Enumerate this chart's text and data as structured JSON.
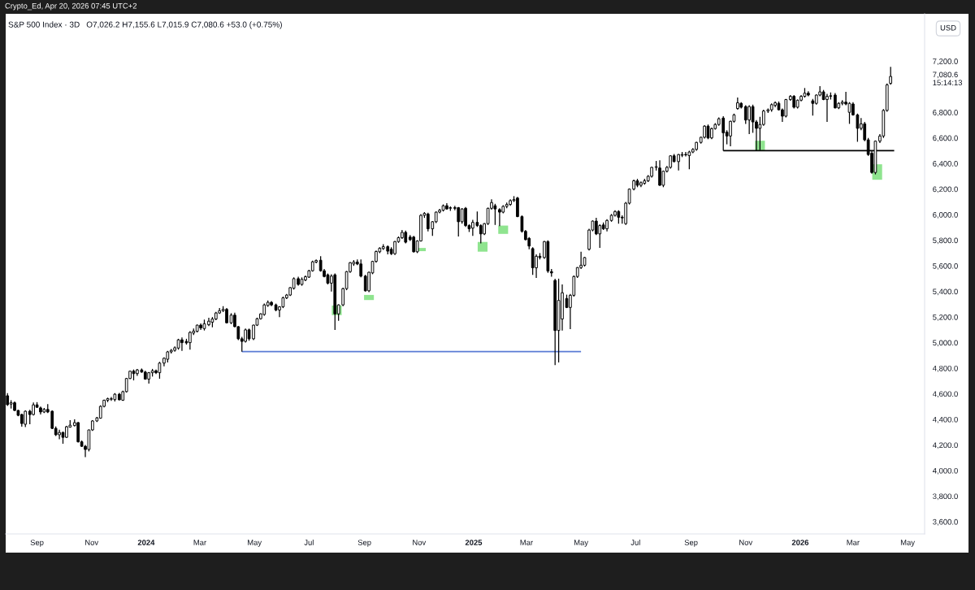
{
  "chart_data": {
    "type": "candlestick",
    "title": "S&P 500 Index · 3D",
    "subtitle": "O7,026.2 H7,155.6 L7,015.9 C7,080.6 +53.0 (+0.75%)",
    "ylabel": "USD",
    "annotations": [
      "Crypto_Ed, Apr 20, 2026 07:45 UTC+2",
      "7,080.6\n15:14:13"
    ],
    "xlim": [
      "2023-07-28",
      "2026-05-20"
    ],
    "ylim": [
      3505,
      7570
    ],
    "xticks": [
      {
        "value": "2023-09-01",
        "label": "Sep"
      },
      {
        "value": "2023-11-01",
        "label": "Nov"
      },
      {
        "value": "2024-01-01",
        "label": "2024"
      },
      {
        "value": "2024-03-01",
        "label": "Mar"
      },
      {
        "value": "2024-05-01",
        "label": "May"
      },
      {
        "value": "2024-07-01",
        "label": "Jul"
      },
      {
        "value": "2024-09-01",
        "label": "Sep"
      },
      {
        "value": "2024-11-01",
        "label": "Nov"
      },
      {
        "value": "2025-01-01",
        "label": "2025"
      },
      {
        "value": "2025-03-01",
        "label": "Mar"
      },
      {
        "value": "2025-05-01",
        "label": "May"
      },
      {
        "value": "2025-07-01",
        "label": "Jul"
      },
      {
        "value": "2025-09-01",
        "label": "Sep"
      },
      {
        "value": "2025-11-01",
        "label": "Nov"
      },
      {
        "value": "2026-01-01",
        "label": "2026"
      },
      {
        "value": "2026-03-01",
        "label": "Mar"
      },
      {
        "value": "2026-05-01",
        "label": "May"
      }
    ],
    "yticks": [
      {
        "value": 3600,
        "label": "3,600.0"
      },
      {
        "value": 3800,
        "label": "3,800.0"
      },
      {
        "value": 4000,
        "label": "4,000.0"
      },
      {
        "value": 4200,
        "label": "4,200.0"
      },
      {
        "value": 4400,
        "label": "4,400.0"
      },
      {
        "value": 4600,
        "label": "4,600.0"
      },
      {
        "value": 4800,
        "label": "4,800.0"
      },
      {
        "value": 5000,
        "label": "5,000.0"
      },
      {
        "value": 5200,
        "label": "5,200.0"
      },
      {
        "value": 5400,
        "label": "5,400.0"
      },
      {
        "value": 5600,
        "label": "5,600.0"
      },
      {
        "value": 5800,
        "label": "5,800.0"
      },
      {
        "value": 6000,
        "label": "6,000.0"
      },
      {
        "value": 6200,
        "label": "6,200.0"
      },
      {
        "value": 6400,
        "label": "6,400.0"
      },
      {
        "value": 6600,
        "label": "6,600.0"
      },
      {
        "value": 6800,
        "label": "6,800.0"
      },
      {
        "value": 7200,
        "label": "7,200.0"
      }
    ],
    "series": [
      {
        "type": "bar",
        "color": "#8fe48f",
        "x": [
          "2024-08-01",
          "2024-09-06",
          "2024-11-03",
          "2025-01-11",
          "2025-02-03",
          "2025-11-17",
          "2026-03-28"
        ],
        "base": [
          5215,
          5333,
          5715,
          5711,
          5850,
          6500,
          6273
        ],
        "values": [
          75,
          40,
          25,
          76,
          65,
          78,
          121
        ]
      },
      {
        "type": "line",
        "color": "#5b7bd5",
        "x": [
          "2024-04-17",
          "2025-05-01"
        ],
        "values": [
          4930,
          4930
        ]
      },
      {
        "type": "line",
        "color": "#000000",
        "x": [
          "2025-10-07",
          "2026-04-16"
        ],
        "values": [
          6500,
          6500
        ]
      },
      {
        "color": "#000000",
        "x": [
          "2023-07-30",
          "2023-08-03",
          "2023-08-07",
          "2023-08-11",
          "2023-08-15",
          "2023-08-19",
          "2023-08-24",
          "2023-08-28",
          "2023-09-01",
          "2023-09-05",
          "2023-09-09",
          "2023-09-13",
          "2023-09-18",
          "2023-09-22",
          "2023-09-26",
          "2023-09-30",
          "2023-10-04",
          "2023-10-08",
          "2023-10-13",
          "2023-10-17",
          "2023-10-21",
          "2023-10-25",
          "2023-10-29",
          "2023-11-02",
          "2023-11-07",
          "2023-11-11",
          "2023-11-15",
          "2023-11-19",
          "2023-11-23",
          "2023-11-27",
          "2023-12-02",
          "2023-12-06",
          "2023-12-10",
          "2023-12-14",
          "2023-12-18",
          "2023-12-22",
          "2023-12-27",
          "2023-12-31",
          "2024-01-04",
          "2024-01-08",
          "2024-01-12",
          "2024-01-16",
          "2024-01-21",
          "2024-01-25",
          "2024-01-29",
          "2024-02-02",
          "2024-02-06",
          "2024-02-10",
          "2024-02-15",
          "2024-02-19",
          "2024-02-23",
          "2024-02-27",
          "2024-03-02",
          "2024-03-06",
          "2024-03-11",
          "2024-03-15",
          "2024-03-19",
          "2024-03-23",
          "2024-03-27",
          "2024-03-31",
          "2024-04-05",
          "2024-04-09",
          "2024-04-13",
          "2024-04-17",
          "2024-04-21",
          "2024-04-25",
          "2024-04-30",
          "2024-05-04",
          "2024-05-08",
          "2024-05-12",
          "2024-05-16",
          "2024-05-20",
          "2024-05-25",
          "2024-05-29",
          "2024-06-02",
          "2024-06-06",
          "2024-06-10",
          "2024-06-14",
          "2024-06-19",
          "2024-06-23",
          "2024-06-27",
          "2024-07-01",
          "2024-07-05",
          "2024-07-09",
          "2024-07-14",
          "2024-07-18",
          "2024-07-22",
          "2024-07-26",
          "2024-07-30",
          "2024-08-03",
          "2024-08-08",
          "2024-08-12",
          "2024-08-16",
          "2024-08-20",
          "2024-08-24",
          "2024-08-28",
          "2024-09-02",
          "2024-09-06",
          "2024-09-10",
          "2024-09-14",
          "2024-09-18",
          "2024-09-22",
          "2024-09-27",
          "2024-10-01",
          "2024-10-05",
          "2024-10-09",
          "2024-10-13",
          "2024-10-17",
          "2024-10-22",
          "2024-10-26",
          "2024-10-30",
          "2024-11-03",
          "2024-11-07",
          "2024-11-11",
          "2024-11-16",
          "2024-11-20",
          "2024-11-24",
          "2024-11-28",
          "2024-12-02",
          "2024-12-06",
          "2024-12-11",
          "2024-12-15",
          "2024-12-19",
          "2024-12-23",
          "2024-12-27",
          "2024-12-31",
          "2025-01-05",
          "2025-01-09",
          "2025-01-13",
          "2025-01-17",
          "2025-01-21",
          "2025-01-25",
          "2025-01-30",
          "2025-02-03",
          "2025-02-07",
          "2025-02-11",
          "2025-02-15",
          "2025-02-19",
          "2025-02-24",
          "2025-02-28",
          "2025-03-04",
          "2025-03-08",
          "2025-03-12",
          "2025-03-16",
          "2025-03-21",
          "2025-03-25",
          "2025-03-29",
          "2025-04-02",
          "2025-04-06",
          "2025-04-10",
          "2025-04-15",
          "2025-04-19",
          "2025-04-23",
          "2025-04-27",
          "2025-05-01",
          "2025-05-05",
          "2025-05-10",
          "2025-05-14",
          "2025-05-18",
          "2025-05-22",
          "2025-05-26",
          "2025-05-30",
          "2025-06-04",
          "2025-06-08",
          "2025-06-12",
          "2025-06-16",
          "2025-06-20",
          "2025-06-24",
          "2025-06-29",
          "2025-07-03",
          "2025-07-07",
          "2025-07-11",
          "2025-07-15",
          "2025-07-19",
          "2025-07-24",
          "2025-07-28",
          "2025-08-01",
          "2025-08-05",
          "2025-08-09",
          "2025-08-13",
          "2025-08-18",
          "2025-08-22",
          "2025-08-26",
          "2025-08-30",
          "2025-09-03",
          "2025-09-07",
          "2025-09-12",
          "2025-09-16",
          "2025-09-20",
          "2025-09-24",
          "2025-09-28",
          "2025-10-02",
          "2025-10-07",
          "2025-10-11",
          "2025-10-15",
          "2025-10-19",
          "2025-10-23",
          "2025-10-27",
          "2025-11-01",
          "2025-11-05",
          "2025-11-09",
          "2025-11-13",
          "2025-11-17",
          "2025-11-21",
          "2025-11-26",
          "2025-11-30",
          "2025-12-04",
          "2025-12-08",
          "2025-12-12",
          "2025-12-16",
          "2025-12-21",
          "2025-12-25",
          "2025-12-29",
          "2026-01-02",
          "2026-01-06",
          "2026-01-10",
          "2026-01-15",
          "2026-01-19",
          "2026-01-23",
          "2026-01-27",
          "2026-01-31",
          "2026-02-04",
          "2026-02-09",
          "2026-02-13",
          "2026-02-17",
          "2026-02-21",
          "2026-02-25",
          "2026-03-01",
          "2026-03-06",
          "2026-03-10",
          "2026-03-14",
          "2026-03-18",
          "2026-03-22",
          "2026-03-26",
          "2026-03-31",
          "2026-04-04",
          "2026-04-08",
          "2026-04-12"
        ],
        "ohlc": [
          [
            4585,
            4605,
            4505,
            4515
          ],
          [
            4520,
            4550,
            4485,
            4530
          ],
          [
            4530,
            4540,
            4465,
            4470
          ],
          [
            4470,
            4475,
            4425,
            4432
          ],
          [
            4438,
            4445,
            4343,
            4368
          ],
          [
            4362,
            4470,
            4340,
            4464
          ],
          [
            4464,
            4475,
            4362,
            4438
          ],
          [
            4438,
            4533,
            4430,
            4514
          ],
          [
            4514,
            4535,
            4490,
            4495
          ],
          [
            4490,
            4500,
            4438,
            4458
          ],
          [
            4458,
            4490,
            4450,
            4478
          ],
          [
            4478,
            4520,
            4450,
            4458
          ],
          [
            4464,
            4470,
            4325,
            4330
          ],
          [
            4330,
            4345,
            4270,
            4280
          ],
          [
            4280,
            4320,
            4245,
            4298
          ],
          [
            4298,
            4305,
            4210,
            4260
          ],
          [
            4260,
            4350,
            4255,
            4343
          ],
          [
            4340,
            4395,
            4335,
            4355
          ],
          [
            4352,
            4400,
            4345,
            4375
          ],
          [
            4375,
            4380,
            4220,
            4225
          ],
          [
            4225,
            4235,
            4185,
            4190
          ],
          [
            4190,
            4200,
            4105,
            4165
          ],
          [
            4165,
            4320,
            4150,
            4318
          ],
          [
            4318,
            4395,
            4310,
            4388
          ],
          [
            4388,
            4420,
            4380,
            4412
          ],
          [
            4410,
            4510,
            4405,
            4502
          ],
          [
            4502,
            4555,
            4495,
            4550
          ],
          [
            4550,
            4570,
            4535,
            4562
          ],
          [
            4558,
            4575,
            4545,
            4560
          ],
          [
            4555,
            4605,
            4540,
            4597
          ],
          [
            4597,
            4607,
            4550,
            4553
          ],
          [
            4550,
            4625,
            4545,
            4617
          ],
          [
            4617,
            4725,
            4610,
            4720
          ],
          [
            4720,
            4780,
            4715,
            4777
          ],
          [
            4777,
            4790,
            4705,
            4758
          ],
          [
            4758,
            4795,
            4740,
            4787
          ],
          [
            4787,
            4798,
            4765,
            4770
          ],
          [
            4770,
            4780,
            4710,
            4715
          ],
          [
            4715,
            4770,
            4680,
            4765
          ],
          [
            4765,
            4795,
            4735,
            4780
          ],
          [
            4780,
            4790,
            4755,
            4765
          ],
          [
            4765,
            4850,
            4718,
            4840
          ],
          [
            4840,
            4885,
            4815,
            4878
          ],
          [
            4870,
            4935,
            4845,
            4928
          ],
          [
            4928,
            4950,
            4915,
            4940
          ],
          [
            4940,
            4970,
            4930,
            4960
          ],
          [
            4958,
            5030,
            4945,
            5022
          ],
          [
            5022,
            5040,
            4935,
            5000
          ],
          [
            5010,
            5030,
            4985,
            4998
          ],
          [
            5000,
            5090,
            4946,
            5080
          ],
          [
            5075,
            5110,
            5060,
            5090
          ],
          [
            5088,
            5140,
            5080,
            5137
          ],
          [
            5137,
            5150,
            5100,
            5115
          ],
          [
            5110,
            5180,
            5095,
            5148
          ],
          [
            5140,
            5195,
            5130,
            5168
          ],
          [
            5160,
            5200,
            5120,
            5185
          ],
          [
            5185,
            5240,
            5175,
            5232
          ],
          [
            5232,
            5270,
            5225,
            5250
          ],
          [
            5250,
            5285,
            5240,
            5260
          ],
          [
            5260,
            5270,
            5150,
            5155
          ],
          [
            5155,
            5230,
            5145,
            5215
          ],
          [
            5215,
            5235,
            5120,
            5125
          ],
          [
            5125,
            5130,
            5020,
            5030
          ],
          [
            5030,
            5045,
            4930,
            5010
          ],
          [
            5010,
            5110,
            5000,
            5100
          ],
          [
            5100,
            5110,
            5015,
            5030
          ],
          [
            5030,
            5140,
            5020,
            5137
          ],
          [
            5137,
            5195,
            5130,
            5187
          ],
          [
            5187,
            5230,
            5180,
            5225
          ],
          [
            5220,
            5305,
            5210,
            5295
          ],
          [
            5290,
            5330,
            5280,
            5315
          ],
          [
            5315,
            5325,
            5285,
            5295
          ],
          [
            5295,
            5305,
            5245,
            5255
          ],
          [
            5255,
            5285,
            5200,
            5280
          ],
          [
            5280,
            5360,
            5270,
            5350
          ],
          [
            5350,
            5380,
            5340,
            5372
          ],
          [
            5372,
            5435,
            5365,
            5430
          ],
          [
            5425,
            5510,
            5415,
            5500
          ],
          [
            5500,
            5515,
            5445,
            5455
          ],
          [
            5455,
            5510,
            5445,
            5495
          ],
          [
            5490,
            5525,
            5480,
            5515
          ],
          [
            5512,
            5570,
            5505,
            5562
          ],
          [
            5562,
            5640,
            5555,
            5632
          ],
          [
            5630,
            5650,
            5620,
            5642
          ],
          [
            5644,
            5676,
            5555,
            5562
          ],
          [
            5562,
            5575,
            5510,
            5517
          ],
          [
            5530,
            5540,
            5455,
            5465
          ],
          [
            5465,
            5535,
            5400,
            5520
          ],
          [
            5530,
            5540,
            5100,
            5225
          ],
          [
            5225,
            5300,
            5170,
            5295
          ],
          [
            5295,
            5430,
            5285,
            5422
          ],
          [
            5422,
            5560,
            5410,
            5555
          ],
          [
            5555,
            5630,
            5545,
            5625
          ],
          [
            5615,
            5645,
            5600,
            5630
          ],
          [
            5630,
            5650,
            5605,
            5615
          ],
          [
            5615,
            5650,
            5510,
            5520
          ],
          [
            5520,
            5530,
            5400,
            5405
          ],
          [
            5405,
            5555,
            5395,
            5550
          ],
          [
            5545,
            5640,
            5535,
            5635
          ],
          [
            5635,
            5720,
            5625,
            5712
          ],
          [
            5710,
            5745,
            5700,
            5738
          ],
          [
            5735,
            5770,
            5725,
            5750
          ],
          [
            5750,
            5760,
            5690,
            5715
          ],
          [
            5730,
            5745,
            5685,
            5695
          ],
          [
            5695,
            5795,
            5685,
            5790
          ],
          [
            5790,
            5830,
            5780,
            5820
          ],
          [
            5820,
            5880,
            5810,
            5862
          ],
          [
            5862,
            5875,
            5775,
            5785
          ],
          [
            5825,
            5840,
            5795,
            5805
          ],
          [
            5825,
            5835,
            5705,
            5710
          ],
          [
            5710,
            5800,
            5700,
            5795
          ],
          [
            5795,
            6005,
            5790,
            5995
          ],
          [
            5995,
            6020,
            5975,
            6010
          ],
          [
            6005,
            6015,
            5870,
            5890
          ],
          [
            5890,
            5950,
            5835,
            5945
          ],
          [
            5945,
            6025,
            5935,
            6020
          ],
          [
            6020,
            6045,
            6010,
            6035
          ],
          [
            6035,
            6080,
            6025,
            6070
          ],
          [
            6070,
            6090,
            6040,
            6045
          ],
          [
            6050,
            6065,
            6030,
            6055
          ],
          [
            6055,
            6070,
            6035,
            6050
          ],
          [
            6055,
            6060,
            5830,
            5945
          ],
          [
            5945,
            6050,
            5930,
            6045
          ],
          [
            6050,
            6060,
            5905,
            5915
          ],
          [
            5915,
            5925,
            5865,
            5890
          ],
          [
            5895,
            5960,
            5835,
            5940
          ],
          [
            5940,
            6025,
            5905,
            5915
          ],
          [
            5915,
            5925,
            5775,
            5850
          ],
          [
            5850,
            5935,
            5840,
            5930
          ],
          [
            5930,
            6055,
            5920,
            6050
          ],
          [
            6050,
            6120,
            6040,
            6095
          ],
          [
            6070,
            6085,
            5920,
            6045
          ],
          [
            6040,
            6050,
            5910,
            6020
          ],
          [
            6020,
            6075,
            6010,
            6065
          ],
          [
            6065,
            6095,
            6050,
            6080
          ],
          [
            6080,
            6120,
            6070,
            6110
          ],
          [
            6110,
            6145,
            6100,
            6118
          ],
          [
            6130,
            6140,
            5980,
            5985
          ],
          [
            5985,
            5995,
            5860,
            5870
          ],
          [
            5870,
            5880,
            5800,
            5805
          ],
          [
            5815,
            5825,
            5730,
            5755
          ],
          [
            5735,
            5745,
            5530,
            5585
          ],
          [
            5585,
            5690,
            5505,
            5675
          ],
          [
            5675,
            5700,
            5650,
            5665
          ],
          [
            5665,
            5795,
            5655,
            5790
          ],
          [
            5790,
            5800,
            5545,
            5560
          ],
          [
            5555,
            5575,
            5515,
            5545
          ],
          [
            5486,
            5500,
            4825,
            5095
          ],
          [
            5095,
            5500,
            4845,
            5330
          ],
          [
            5185,
            5455,
            5095,
            5390
          ],
          [
            5345,
            5375,
            5270,
            5275
          ],
          [
            5275,
            5380,
            5105,
            5370
          ],
          [
            5370,
            5525,
            5360,
            5517
          ],
          [
            5517,
            5590,
            5505,
            5587
          ],
          [
            5587,
            5710,
            5575,
            5605
          ],
          [
            5605,
            5670,
            5595,
            5665
          ],
          [
            5730,
            5890,
            5720,
            5880
          ],
          [
            5880,
            5955,
            5870,
            5950
          ],
          [
            5950,
            5975,
            5840,
            5850
          ],
          [
            5850,
            5925,
            5740,
            5915
          ],
          [
            5920,
            5940,
            5880,
            5890
          ],
          [
            5890,
            5965,
            5870,
            5955
          ],
          [
            5955,
            6005,
            5945,
            5995
          ],
          [
            5995,
            6035,
            5985,
            6025
          ],
          [
            6025,
            6035,
            5930,
            5980
          ],
          [
            5980,
            5995,
            5930,
            5975
          ],
          [
            5930,
            6100,
            5920,
            6090
          ],
          [
            6090,
            6205,
            6080,
            6200
          ],
          [
            6200,
            6275,
            6190,
            6265
          ],
          [
            6265,
            6280,
            6215,
            6230
          ],
          [
            6230,
            6260,
            6215,
            6250
          ],
          [
            6245,
            6280,
            6235,
            6265
          ],
          [
            6265,
            6310,
            6255,
            6300
          ],
          [
            6300,
            6375,
            6290,
            6370
          ],
          [
            6370,
            6420,
            6345,
            6375
          ],
          [
            6365,
            6425,
            6225,
            6230
          ],
          [
            6230,
            6345,
            6215,
            6340
          ],
          [
            6340,
            6380,
            6330,
            6370
          ],
          [
            6370,
            6465,
            6360,
            6460
          ],
          [
            6460,
            6475,
            6410,
            6415
          ],
          [
            6415,
            6475,
            6345,
            6470
          ],
          [
            6465,
            6490,
            6450,
            6470
          ],
          [
            6470,
            6490,
            6455,
            6468
          ],
          [
            6462,
            6500,
            6355,
            6490
          ],
          [
            6490,
            6520,
            6480,
            6510
          ],
          [
            6510,
            6570,
            6500,
            6565
          ],
          [
            6565,
            6610,
            6555,
            6605
          ],
          [
            6605,
            6700,
            6595,
            6692
          ],
          [
            6692,
            6705,
            6590,
            6600
          ],
          [
            6600,
            6680,
            6590,
            6673
          ],
          [
            6673,
            6715,
            6665,
            6705
          ],
          [
            6705,
            6760,
            6695,
            6750
          ],
          [
            6755,
            6770,
            6500,
            6640
          ],
          [
            6645,
            6660,
            6550,
            6615
          ],
          [
            6615,
            6735,
            6535,
            6730
          ],
          [
            6730,
            6790,
            6720,
            6780
          ],
          [
            6830,
            6915,
            6820,
            6875
          ],
          [
            6870,
            6880,
            6830,
            6840
          ],
          [
            6845,
            6855,
            6710,
            6740
          ],
          [
            6740,
            6855,
            6630,
            6845
          ],
          [
            6845,
            6860,
            6640,
            6725
          ],
          [
            6725,
            6740,
            6500,
            6675
          ],
          [
            6675,
            6765,
            6505,
            6705
          ],
          [
            6705,
            6820,
            6695,
            6810
          ],
          [
            6810,
            6830,
            6795,
            6820
          ],
          [
            6820,
            6870,
            6805,
            6860
          ],
          [
            6855,
            6885,
            6840,
            6875
          ],
          [
            6870,
            6885,
            6815,
            6820
          ],
          [
            6820,
            6830,
            6725,
            6770
          ],
          [
            6770,
            6905,
            6760,
            6900
          ],
          [
            6900,
            6935,
            6890,
            6925
          ],
          [
            6925,
            6935,
            6830,
            6840
          ],
          [
            6840,
            6900,
            6830,
            6895
          ],
          [
            6895,
            6935,
            6885,
            6925
          ],
          [
            6925,
            6990,
            6915,
            6950
          ],
          [
            6950,
            6965,
            6925,
            6935
          ],
          [
            6890,
            6905,
            6775,
            6870
          ],
          [
            6870,
            6940,
            6860,
            6935
          ],
          [
            6935,
            7005,
            6925,
            6960
          ],
          [
            6960,
            6975,
            6895,
            6900
          ],
          [
            6900,
            6945,
            6725,
            6925
          ],
          [
            6925,
            6955,
            6900,
            6930
          ],
          [
            6935,
            6950,
            6830,
            6835
          ],
          [
            6835,
            6880,
            6825,
            6870
          ],
          [
            6870,
            6895,
            6855,
            6880
          ],
          [
            6880,
            6960,
            6855,
            6865
          ],
          [
            6800,
            6880,
            6710,
            6870
          ],
          [
            6865,
            6880,
            6775,
            6780
          ],
          [
            6780,
            6790,
            6570,
            6675
          ],
          [
            6675,
            6755,
            6660,
            6710
          ],
          [
            6710,
            6725,
            6575,
            6585
          ],
          [
            6585,
            6600,
            6460,
            6470
          ],
          [
            6480,
            6500,
            6320,
            6330
          ],
          [
            6330,
            6580,
            6315,
            6575
          ],
          [
            6575,
            6630,
            6560,
            6615
          ],
          [
            6615,
            6825,
            6600,
            6815
          ],
          [
            6815,
            7025,
            6805,
            7015
          ],
          [
            7026.2,
            7155.6,
            7015.9,
            7080.6
          ]
        ]
      }
    ]
  }
}
